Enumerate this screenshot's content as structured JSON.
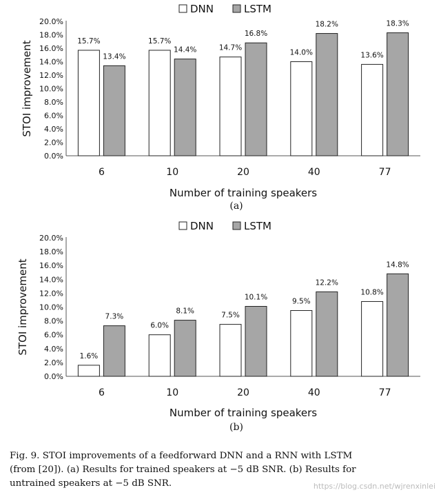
{
  "colors": {
    "dnn_fill": "#ffffff",
    "lstm_fill": "#a6a6a6",
    "bar_stroke": "#222222",
    "axis": "#555555"
  },
  "chart_data": [
    {
      "type": "bar",
      "panel_label": "(a)",
      "categories": [
        "6",
        "10",
        "20",
        "40",
        "77"
      ],
      "series": [
        {
          "name": "DNN",
          "values": [
            15.7,
            15.7,
            14.7,
            14.0,
            13.6
          ],
          "labels": [
            "15.7%",
            "15.7%",
            "14.7%",
            "14.0%",
            "13.6%"
          ]
        },
        {
          "name": "LSTM",
          "values": [
            13.4,
            14.4,
            16.8,
            18.2,
            18.3
          ],
          "labels": [
            "13.4%",
            "14.4%",
            "16.8%",
            "18.2%",
            "18.3%"
          ]
        }
      ],
      "title": "",
      "xlabel": "Number of training speakers",
      "ylabel": "STOI improvement",
      "ylim": [
        0,
        20
      ],
      "yticks": [
        "0.0%",
        "2.0%",
        "4.0%",
        "6.0%",
        "8.0%",
        "10.0%",
        "12.0%",
        "14.0%",
        "16.0%",
        "18.0%",
        "20.0%"
      ],
      "legend": "top-center",
      "grid": false
    },
    {
      "type": "bar",
      "panel_label": "(b)",
      "categories": [
        "6",
        "10",
        "20",
        "40",
        "77"
      ],
      "series": [
        {
          "name": "DNN",
          "values": [
            1.6,
            6.0,
            7.5,
            9.5,
            10.8
          ],
          "labels": [
            "1.6%",
            "6.0%",
            "7.5%",
            "9.5%",
            "10.8%"
          ]
        },
        {
          "name": "LSTM",
          "values": [
            7.3,
            8.1,
            10.1,
            12.2,
            14.8
          ],
          "labels": [
            "7.3%",
            "8.1%",
            "10.1%",
            "12.2%",
            "14.8%"
          ]
        }
      ],
      "title": "",
      "xlabel": "Number of training speakers",
      "ylabel": "STOI improvement",
      "ylim": [
        0,
        20
      ],
      "yticks": [
        "0.0%",
        "2.0%",
        "4.0%",
        "6.0%",
        "8.0%",
        "10.0%",
        "12.0%",
        "14.0%",
        "16.0%",
        "18.0%",
        "20.0%"
      ],
      "legend": "top-center",
      "grid": false
    }
  ],
  "caption": {
    "lines": [
      "Fig. 9.    STOI improvements of a feedforward DNN and a RNN with LSTM",
      "(from [20]). (a) Results for trained speakers at −5 dB SNR. (b) Results for",
      "untrained speakers at −5 dB SNR."
    ]
  },
  "watermark": "https://blog.csdn.net/wjrenxinlei"
}
